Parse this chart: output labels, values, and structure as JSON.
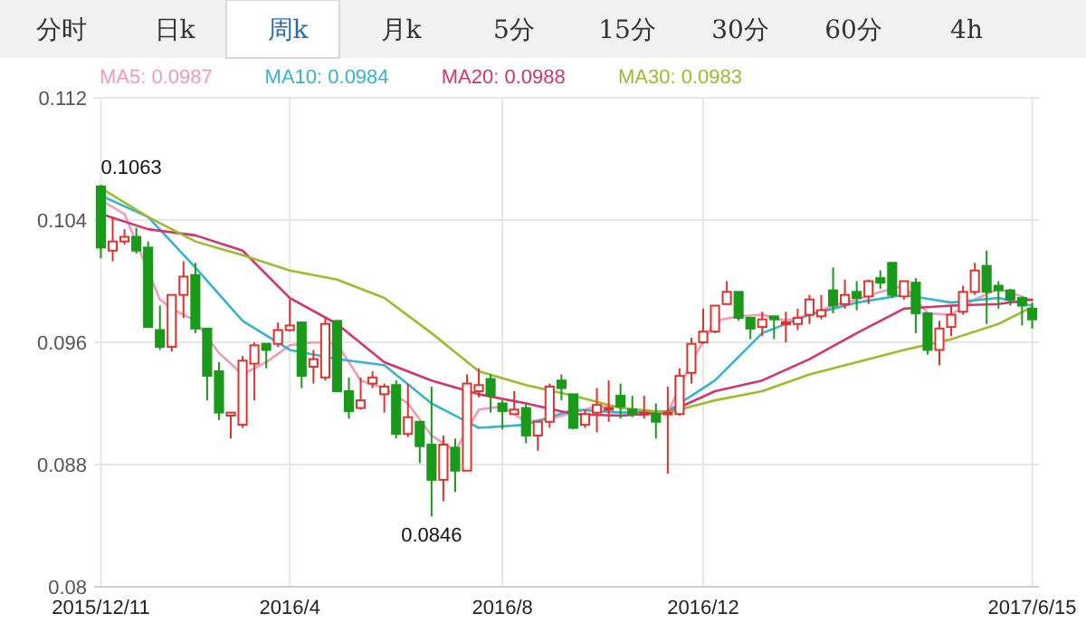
{
  "chart_data": {
    "type": "candlestick",
    "annotations": [
      "分时",
      "日k",
      "周k",
      "月k",
      "5分",
      "15分",
      "30分",
      "60分",
      "4h",
      {
        "text": "0.1063",
        "x": "2015-12-11",
        "y": 0.1063
      },
      {
        "text": "0.0846",
        "x": "2016-06-24",
        "y": 0.0846
      }
    ],
    "x": [
      "2015-12-11",
      "2015-12-18",
      "2015-12-25",
      "2016-01-01",
      "2016-01-08",
      "2016-01-15",
      "2016-01-22",
      "2016-01-29",
      "2016-02-05",
      "2016-02-12",
      "2016-02-19",
      "2016-02-26",
      "2016-03-04",
      "2016-03-11",
      "2016-03-18",
      "2016-03-25",
      "2016-04-01",
      "2016-04-08",
      "2016-04-15",
      "2016-04-22",
      "2016-04-29",
      "2016-05-06",
      "2016-05-13",
      "2016-05-20",
      "2016-05-27",
      "2016-06-03",
      "2016-06-10",
      "2016-06-17",
      "2016-06-24",
      "2016-07-01",
      "2016-07-08",
      "2016-07-15",
      "2016-07-22",
      "2016-07-29",
      "2016-08-05",
      "2016-08-12",
      "2016-08-19",
      "2016-08-26",
      "2016-09-02",
      "2016-09-09",
      "2016-09-16",
      "2016-09-23",
      "2016-09-30",
      "2016-10-07",
      "2016-10-14",
      "2016-10-21",
      "2016-10-28",
      "2016-11-04",
      "2016-11-11",
      "2016-11-18",
      "2016-11-25",
      "2016-12-02",
      "2016-12-09",
      "2016-12-16",
      "2016-12-23",
      "2016-12-30",
      "2017-01-06",
      "2017-01-13",
      "2017-01-20",
      "2017-01-27",
      "2017-02-03",
      "2017-02-10",
      "2017-02-17",
      "2017-02-24",
      "2017-03-03",
      "2017-03-10",
      "2017-03-17",
      "2017-03-24",
      "2017-03-31",
      "2017-04-07",
      "2017-04-14",
      "2017-04-21",
      "2017-04-28",
      "2017-05-05",
      "2017-05-12",
      "2017-05-19",
      "2017-05-26",
      "2017-06-02",
      "2017-06-09",
      "2017-06-15"
    ],
    "ohlc": [
      [
        0.1062,
        0.1063,
        0.1015,
        0.1022
      ],
      [
        0.102,
        0.1042,
        0.1013,
        0.1026
      ],
      [
        0.1026,
        0.1034,
        0.1024,
        0.1029
      ],
      [
        0.1029,
        0.1035,
        0.1018,
        0.102
      ],
      [
        0.1022,
        0.1026,
        0.097,
        0.097
      ],
      [
        0.0968,
        0.0984,
        0.0955,
        0.0957
      ],
      [
        0.0957,
        0.0991,
        0.0954,
        0.0991
      ],
      [
        0.0991,
        0.1013,
        0.0976,
        0.1003
      ],
      [
        0.1004,
        0.1012,
        0.0966,
        0.0969
      ],
      [
        0.0969,
        0.0969,
        0.0922,
        0.0938
      ],
      [
        0.0941,
        0.0947,
        0.0909,
        0.0914
      ],
      [
        0.0912,
        0.0914,
        0.0897,
        0.0914
      ],
      [
        0.0906,
        0.0951,
        0.0904,
        0.0948
      ],
      [
        0.0946,
        0.096,
        0.0922,
        0.0958
      ],
      [
        0.0959,
        0.0959,
        0.0943,
        0.0955
      ],
      [
        0.0959,
        0.0973,
        0.0957,
        0.0968
      ],
      [
        0.0968,
        0.0988,
        0.0967,
        0.0971
      ],
      [
        0.0973,
        0.0973,
        0.093,
        0.0938
      ],
      [
        0.0944,
        0.0955,
        0.0933,
        0.0949
      ],
      [
        0.0937,
        0.0976,
        0.0935,
        0.0972
      ],
      [
        0.0974,
        0.0974,
        0.0928,
        0.0928
      ],
      [
        0.0928,
        0.0937,
        0.091,
        0.0915
      ],
      [
        0.0917,
        0.0937,
        0.0916,
        0.0922
      ],
      [
        0.0933,
        0.0941,
        0.093,
        0.0937
      ],
      [
        0.0926,
        0.0933,
        0.0914,
        0.0931
      ],
      [
        0.0932,
        0.0935,
        0.0897,
        0.09
      ],
      [
        0.09,
        0.0933,
        0.0898,
        0.0911
      ],
      [
        0.0908,
        0.0908,
        0.0881,
        0.0892
      ],
      [
        0.0893,
        0.0931,
        0.0846,
        0.087
      ],
      [
        0.087,
        0.0899,
        0.0856,
        0.0893
      ],
      [
        0.0891,
        0.0897,
        0.0862,
        0.0876
      ],
      [
        0.0876,
        0.0939,
        0.0876,
        0.0933
      ],
      [
        0.0928,
        0.0943,
        0.0924,
        0.0932
      ],
      [
        0.0936,
        0.0939,
        0.0914,
        0.0925
      ],
      [
        0.092,
        0.0922,
        0.0903,
        0.0915
      ],
      [
        0.0913,
        0.0928,
        0.0913,
        0.0916
      ],
      [
        0.0917,
        0.092,
        0.0894,
        0.0899
      ],
      [
        0.0899,
        0.0908,
        0.0889,
        0.0908
      ],
      [
        0.0908,
        0.0933,
        0.0904,
        0.0931
      ],
      [
        0.0935,
        0.0939,
        0.0922,
        0.093
      ],
      [
        0.0926,
        0.0926,
        0.0903,
        0.0904
      ],
      [
        0.0906,
        0.0916,
        0.0904,
        0.0913
      ],
      [
        0.0914,
        0.093,
        0.0901,
        0.0919
      ],
      [
        0.0916,
        0.0935,
        0.0908,
        0.0917
      ],
      [
        0.0925,
        0.0933,
        0.091,
        0.0918
      ],
      [
        0.0916,
        0.0925,
        0.0911,
        0.0913
      ],
      [
        0.0913,
        0.0925,
        0.091,
        0.0914
      ],
      [
        0.0913,
        0.092,
        0.0897,
        0.0908
      ],
      [
        0.0913,
        0.0931,
        0.0874,
        0.0914
      ],
      [
        0.0913,
        0.0943,
        0.0912,
        0.0938
      ],
      [
        0.094,
        0.0963,
        0.0933,
        0.0959
      ],
      [
        0.096,
        0.0982,
        0.0959,
        0.0967
      ],
      [
        0.0967,
        0.0984,
        0.0966,
        0.0984
      ],
      [
        0.0985,
        0.1,
        0.0985,
        0.0993
      ],
      [
        0.0993,
        0.0993,
        0.0974,
        0.0976
      ],
      [
        0.0976,
        0.0976,
        0.0962,
        0.0969
      ],
      [
        0.097,
        0.098,
        0.0964,
        0.0975
      ],
      [
        0.0977,
        0.0977,
        0.0962,
        0.0975
      ],
      [
        0.0972,
        0.098,
        0.096,
        0.0973
      ],
      [
        0.0972,
        0.0982,
        0.0968,
        0.0976
      ],
      [
        0.0978,
        0.0991,
        0.0972,
        0.0988
      ],
      [
        0.0977,
        0.0991,
        0.0975,
        0.0981
      ],
      [
        0.0994,
        0.1009,
        0.0979,
        0.0984
      ],
      [
        0.0985,
        0.1001,
        0.0982,
        0.0991
      ],
      [
        0.0993,
        0.1,
        0.0981,
        0.0989
      ],
      [
        0.099,
        0.1001,
        0.0985,
        0.1
      ],
      [
        0.1002,
        0.1007,
        0.0995,
        0.0999
      ],
      [
        0.1012,
        0.1012,
        0.0989,
        0.0991
      ],
      [
        0.099,
        0.1,
        0.0988,
        0.1
      ],
      [
        0.0999,
        0.1002,
        0.0966,
        0.0979
      ],
      [
        0.0979,
        0.0979,
        0.0952,
        0.0955
      ],
      [
        0.0955,
        0.0974,
        0.0945,
        0.0969
      ],
      [
        0.097,
        0.0984,
        0.0964,
        0.0978
      ],
      [
        0.098,
        0.0997,
        0.0978,
        0.0993
      ],
      [
        0.0993,
        0.1012,
        0.0991,
        0.1007
      ],
      [
        0.101,
        0.102,
        0.0972,
        0.0993
      ],
      [
        0.0997,
        0.1,
        0.0982,
        0.0994
      ],
      [
        0.0994,
        0.0995,
        0.0984,
        0.0988
      ],
      [
        0.0989,
        0.099,
        0.0971,
        0.0984
      ],
      [
        0.0982,
        0.0986,
        0.0969,
        0.0975
      ]
    ],
    "series": [
      {
        "type": "line",
        "name": "MA5: 0.0987",
        "color": "#f29ab8",
        "x": [
          "2015-12-11",
          "2015-12-25",
          "2016-01-15",
          "2016-01-22",
          "2016-02-05",
          "2016-02-19",
          "2016-03-04",
          "2016-03-18",
          "2016-04-01",
          "2016-04-15",
          "2016-04-29",
          "2016-05-13",
          "2016-05-27",
          "2016-06-10",
          "2016-06-24",
          "2016-07-08",
          "2016-07-22",
          "2016-08-05",
          "2016-08-19",
          "2016-09-02",
          "2016-09-16",
          "2016-09-30",
          "2016-10-14",
          "2016-10-28",
          "2016-11-11",
          "2016-11-25",
          "2016-12-09",
          "2016-12-23",
          "2017-01-06",
          "2017-01-20",
          "2017-02-03",
          "2017-02-17",
          "2017-03-03",
          "2017-03-17",
          "2017-03-31",
          "2017-04-14",
          "2017-04-28",
          "2017-05-12",
          "2017-05-26",
          "2017-06-09",
          "2017-06-15"
        ],
        "values": [
          0.1053,
          0.1044,
          0.0988,
          0.0982,
          0.0974,
          0.0953,
          0.0939,
          0.0947,
          0.0958,
          0.096,
          0.0959,
          0.0935,
          0.093,
          0.092,
          0.0899,
          0.0889,
          0.0916,
          0.0918,
          0.0908,
          0.091,
          0.0914,
          0.0918,
          0.0918,
          0.0913,
          0.0914,
          0.0947,
          0.0974,
          0.0977,
          0.0978,
          0.0974,
          0.0978,
          0.0984,
          0.0988,
          0.0993,
          0.0997,
          0.0979,
          0.0978,
          0.0988,
          0.0995,
          0.099,
          0.0987
        ]
      },
      {
        "type": "line",
        "name": "MA10: 0.0984",
        "color": "#35b4d0",
        "x": [
          "2015-12-11",
          "2016-01-08",
          "2016-02-05",
          "2016-03-04",
          "2016-04-01",
          "2016-04-29",
          "2016-05-27",
          "2016-06-24",
          "2016-07-22",
          "2016-08-19",
          "2016-09-16",
          "2016-10-14",
          "2016-11-11",
          "2016-12-09",
          "2017-01-06",
          "2017-02-03",
          "2017-03-03",
          "2017-03-31",
          "2017-04-28",
          "2017-05-26",
          "2017-06-15"
        ],
        "values": [
          0.1056,
          0.1042,
          0.1009,
          0.0974,
          0.0955,
          0.0949,
          0.0945,
          0.092,
          0.0904,
          0.0906,
          0.0916,
          0.0914,
          0.0915,
          0.0935,
          0.0966,
          0.0978,
          0.0986,
          0.0991,
          0.0986,
          0.0989,
          0.0984
        ]
      },
      {
        "type": "line",
        "name": "MA20: 0.0988",
        "color": "#d6336c",
        "x": [
          "2015-12-11",
          "2016-01-08",
          "2016-02-05",
          "2016-03-04",
          "2016-04-01",
          "2016-04-29",
          "2016-05-27",
          "2016-06-24",
          "2016-07-22",
          "2016-08-19",
          "2016-09-16",
          "2016-10-14",
          "2016-11-11",
          "2016-12-09",
          "2017-01-06",
          "2017-02-03",
          "2017-03-03",
          "2017-03-31",
          "2017-04-28",
          "2017-05-26",
          "2017-06-15"
        ],
        "values": [
          0.1044,
          0.1034,
          0.103,
          0.102,
          0.0989,
          0.0972,
          0.0947,
          0.0935,
          0.0926,
          0.092,
          0.0913,
          0.0912,
          0.0914,
          0.0928,
          0.0935,
          0.0949,
          0.0966,
          0.0982,
          0.0984,
          0.0985,
          0.0988
        ]
      },
      {
        "type": "line",
        "name": "MA30: 0.0983",
        "color": "#9bbd2a",
        "x": [
          "2015-12-11",
          "2016-01-08",
          "2016-02-05",
          "2016-03-04",
          "2016-04-01",
          "2016-04-29",
          "2016-05-27",
          "2016-06-24",
          "2016-07-22",
          "2016-08-19",
          "2016-09-16",
          "2016-10-14",
          "2016-11-11",
          "2016-12-09",
          "2017-01-06",
          "2017-02-03",
          "2017-03-03",
          "2017-03-31",
          "2017-04-28",
          "2017-05-26",
          "2017-06-15"
        ],
        "values": [
          0.1061,
          0.1042,
          0.1026,
          0.1017,
          0.1007,
          0.1001,
          0.0989,
          0.0966,
          0.0941,
          0.0932,
          0.0925,
          0.0917,
          0.0914,
          0.0922,
          0.0928,
          0.0939,
          0.0947,
          0.0955,
          0.0962,
          0.0972,
          0.0983
        ]
      }
    ],
    "xlim": [
      "2015-12-07",
      "2017-06-19"
    ],
    "xticks": [
      {
        "value": "2015-12-11",
        "label": "2015/12/11"
      },
      {
        "value": "2016-04-01",
        "label": "2016/4"
      },
      {
        "value": "2016-08-05",
        "label": "2016/8"
      },
      {
        "value": "2016-12-02",
        "label": "2016/12"
      },
      {
        "value": "2017-06-15",
        "label": "2017/6/15"
      }
    ],
    "ylim": [
      0.08,
      0.112
    ],
    "yticks": [
      {
        "value": 0.08,
        "label": "0.08"
      },
      {
        "value": 0.088,
        "label": "0.088"
      },
      {
        "value": 0.096,
        "label": "0.096"
      },
      {
        "value": 0.104,
        "label": "0.104"
      },
      {
        "value": 0.112,
        "label": "0.112"
      }
    ],
    "grid": true,
    "legend": "top left",
    "marker": "none",
    "line_style": "solid"
  }
}
